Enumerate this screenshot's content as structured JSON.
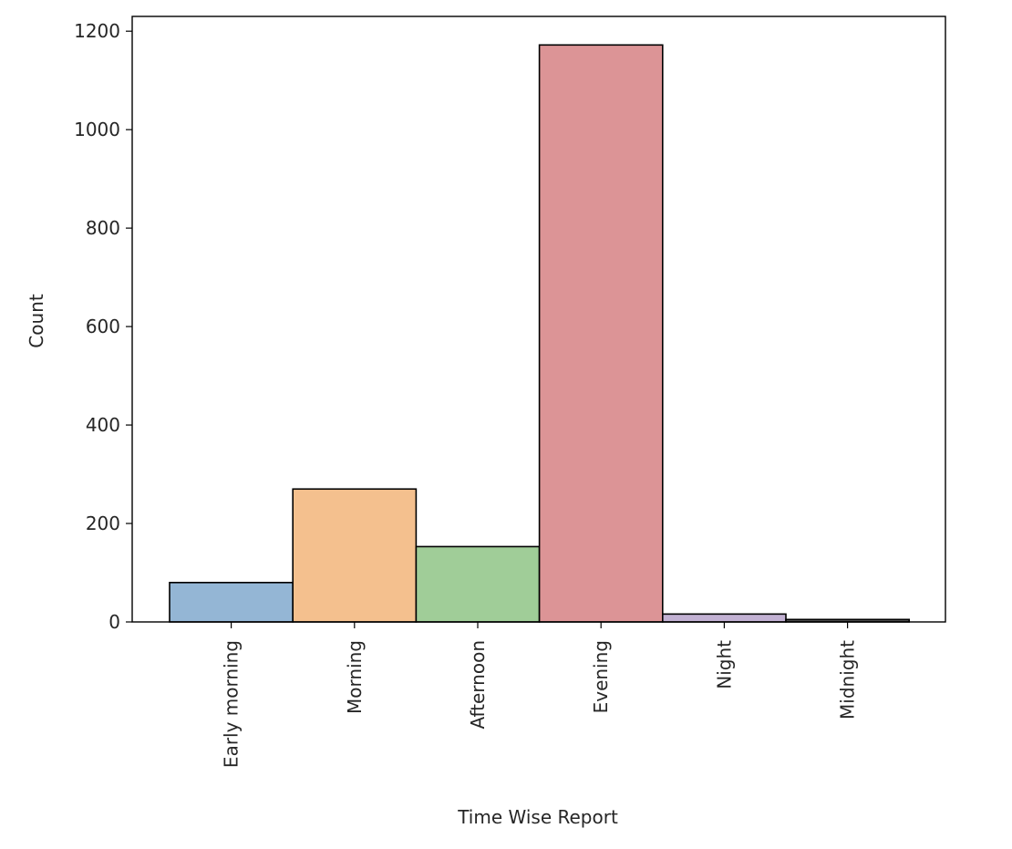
{
  "chart_data": {
    "type": "bar",
    "categories": [
      "Early morning",
      "Morning",
      "Afternoon",
      "Evening",
      "Night",
      "Midnight"
    ],
    "values": [
      80,
      270,
      153,
      1172,
      16,
      5
    ],
    "colors": [
      "#94b6d5",
      "#f4c08e",
      "#a0cd98",
      "#dc9496",
      "#c2b1d3",
      "#555555"
    ],
    "xlabel": "Time Wise Report",
    "ylabel": "Count",
    "ylim": [
      0,
      1230
    ],
    "yticks": [
      0,
      200,
      400,
      600,
      800,
      1000,
      1200
    ],
    "grid": false
  }
}
